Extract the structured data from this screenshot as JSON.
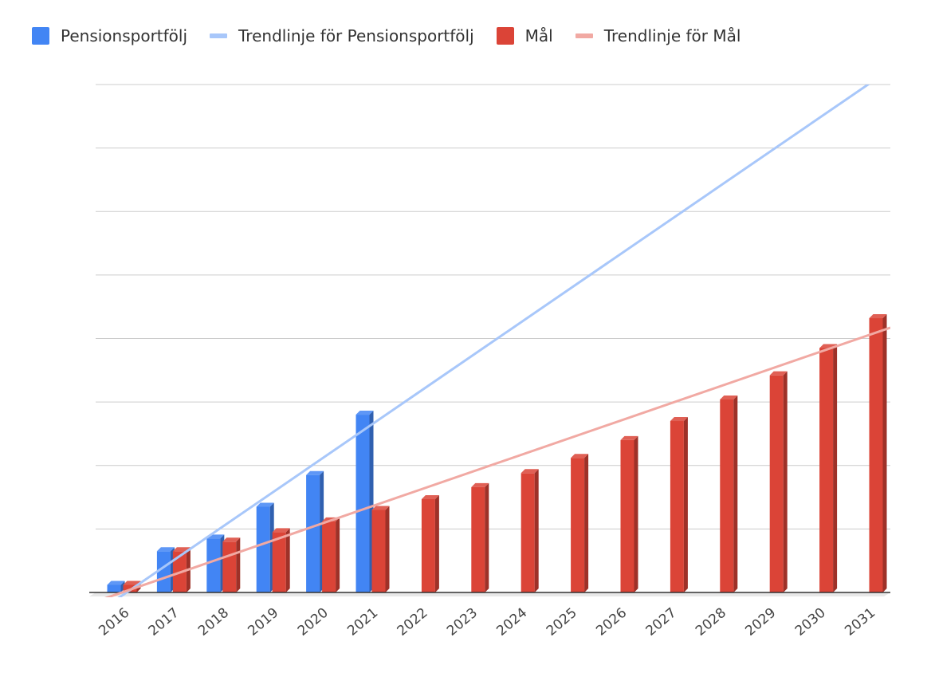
{
  "chart_data": {
    "type": "bar",
    "title": "",
    "xlabel": "",
    "ylabel": "",
    "categories": [
      "2016",
      "2017",
      "2018",
      "2019",
      "2020",
      "2021",
      "2022",
      "2023",
      "2024",
      "2025",
      "2026",
      "2027",
      "2028",
      "2029",
      "2030",
      "2031"
    ],
    "ylim": [
      0,
      800
    ],
    "grid": true,
    "legend_position": "top-left",
    "series": [
      {
        "name": "Pensionsportfölj",
        "kind": "bar",
        "color": "#4285f4",
        "values": [
          12,
          65,
          85,
          135,
          185,
          280,
          null,
          null,
          null,
          null,
          null,
          null,
          null,
          null,
          null,
          null
        ]
      },
      {
        "name": "Mål",
        "kind": "bar",
        "color": "#db4437",
        "values": [
          12,
          65,
          80,
          95,
          112,
          130,
          147,
          166,
          188,
          212,
          240,
          270,
          304,
          342,
          385,
          432
        ]
      },
      {
        "name": "Trendlinje för Pensionsportfölj",
        "kind": "trendline",
        "color": "#a8c7fa",
        "from": [
          "2016",
          -5
        ],
        "to": [
          "2031",
          800
        ]
      },
      {
        "name": "Trendlinje för Mål",
        "kind": "trendline",
        "color": "#f1a9a3",
        "from": [
          "2016",
          0
        ],
        "to": [
          "2031",
          405
        ]
      }
    ]
  }
}
